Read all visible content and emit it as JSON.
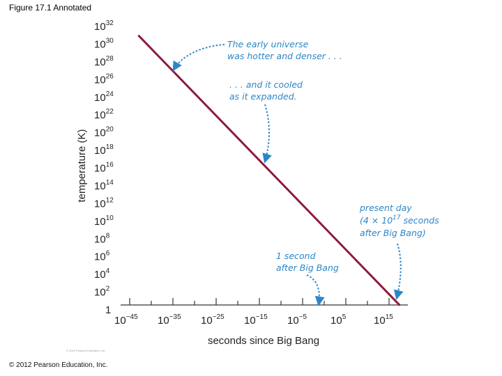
{
  "figure_title": "Figure 17.1 Annotated",
  "copyright": "© 2012 Pearson Education, Inc.",
  "credit_small": "© 2012 Pearson Education, Inc.",
  "chart_data": {
    "type": "line",
    "xlabel": "seconds since Big Bang",
    "ylabel": "temperature (K)",
    "x_scale": "log",
    "y_scale": "log",
    "xlim_exponents": [
      -45,
      17
    ],
    "ylim_exponents": [
      0,
      32
    ],
    "x_ticks": [
      {
        "base": "10",
        "exp": "−45",
        "value_exp": -45
      },
      {
        "base": "10",
        "exp": "−35",
        "value_exp": -35
      },
      {
        "base": "10",
        "exp": "−25",
        "value_exp": -25
      },
      {
        "base": "10",
        "exp": "−15",
        "value_exp": -15
      },
      {
        "base": "10",
        "exp": "−5",
        "value_exp": -5
      },
      {
        "base": "10",
        "exp": "5",
        "value_exp": 5
      },
      {
        "base": "10",
        "exp": "15",
        "value_exp": 15
      }
    ],
    "y_ticks": [
      {
        "base": "1",
        "exp": "",
        "value_exp": 0
      },
      {
        "base": "10",
        "exp": "2",
        "value_exp": 2
      },
      {
        "base": "10",
        "exp": "4",
        "value_exp": 4
      },
      {
        "base": "10",
        "exp": "6",
        "value_exp": 6
      },
      {
        "base": "10",
        "exp": "8",
        "value_exp": 8
      },
      {
        "base": "10",
        "exp": "10",
        "value_exp": 10
      },
      {
        "base": "10",
        "exp": "12",
        "value_exp": 12
      },
      {
        "base": "10",
        "exp": "14",
        "value_exp": 14
      },
      {
        "base": "10",
        "exp": "16",
        "value_exp": 16
      },
      {
        "base": "10",
        "exp": "18",
        "value_exp": 18
      },
      {
        "base": "10",
        "exp": "20",
        "value_exp": 20
      },
      {
        "base": "10",
        "exp": "22",
        "value_exp": 22
      },
      {
        "base": "10",
        "exp": "24",
        "value_exp": 24
      },
      {
        "base": "10",
        "exp": "26",
        "value_exp": 26
      },
      {
        "base": "10",
        "exp": "28",
        "value_exp": 28
      },
      {
        "base": "10",
        "exp": "30",
        "value_exp": 30
      },
      {
        "base": "10",
        "exp": "32",
        "value_exp": 32
      }
    ],
    "series": [
      {
        "color": "#8c1c3c",
        "points_log10": [
          {
            "x": -43,
            "y": 31
          },
          {
            "x": 17.5,
            "y": 0.5
          }
        ]
      }
    ],
    "annotations": [
      {
        "lines": [
          "The early universe",
          "was hotter and denser . . ."
        ],
        "target_log10": {
          "x": -38,
          "y": 27.3
        }
      },
      {
        "lines": [
          ". . . and it cooled",
          "as it expanded."
        ],
        "target_log10": {
          "x": -11,
          "y": 16.2
        }
      },
      {
        "lines": [
          "1 second",
          "after Big Bang"
        ],
        "target_log10": {
          "x": 0,
          "y": 0.7
        }
      },
      {
        "lines": [
          "present day",
          "(4 × 10",
          "seconds",
          "after Big Bang)"
        ],
        "sup": "17",
        "target_log10": {
          "x": 17.3,
          "y": 0.8
        }
      }
    ],
    "grid": false,
    "legend": "none"
  }
}
